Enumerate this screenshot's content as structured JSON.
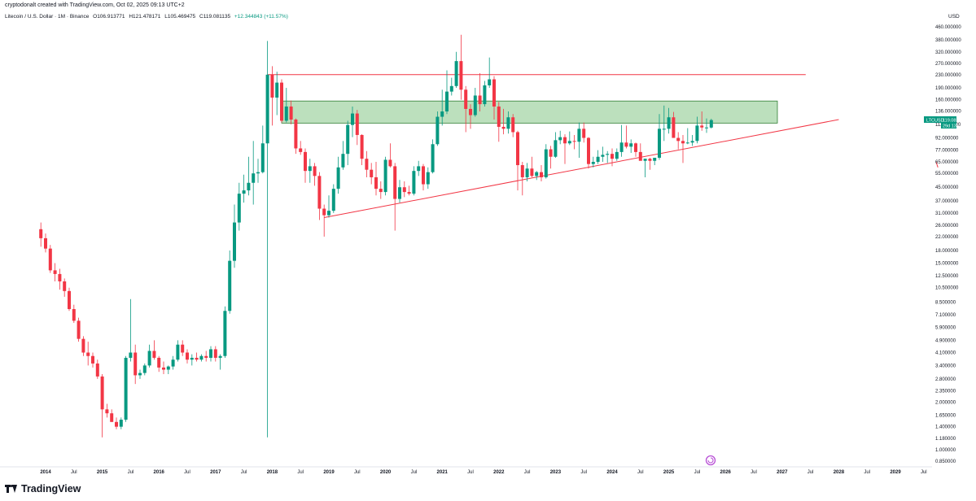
{
  "header": {
    "credit": "cryptodonalt created with TradingView.com, Oct 02, 2025 09:13 UTC+2",
    "symbol": "Litecoin / U.S. Dollar · 1M · Binance",
    "open": "O106.913771",
    "high": "H121.478171",
    "low": "L105.469475",
    "close": "C119.081135",
    "change": "+12.344843 (+11.57%)"
  },
  "price_label": {
    "ticker": "LTCUSD",
    "price": "119.081135",
    "countdown": "29d 13h"
  },
  "footer": {
    "logo": "TradingView"
  },
  "colors": {
    "up": "#089981",
    "down": "#f23645",
    "zone_fill": "#a5d6a7",
    "zone_border": "#2e7d32",
    "line_red": "#f23645"
  },
  "chart_data": {
    "type": "candlestick",
    "y_scale": "log",
    "y_unit": "USD",
    "ylim": [
      0.8,
      480
    ],
    "xlim": [
      "2013-12",
      "2029-12"
    ],
    "y_ticks": [
      "460.000000",
      "380.000000",
      "320.000000",
      "270.000000",
      "230.000000",
      "190.000000",
      "160.000000",
      "136.000000",
      "112.000000",
      "92.000000",
      "77.000000",
      "65.000000",
      "55.000000",
      "45.000000",
      "37.000000",
      "31.000000",
      "26.000000",
      "22.000000",
      "18.000000",
      "15.000000",
      "12.500000",
      "10.500000",
      "8.500000",
      "7.100000",
      "5.900000",
      "4.900000",
      "4.100000",
      "3.400000",
      "2.800000",
      "2.350000",
      "2.000000",
      "1.650000",
      "1.400000",
      "1.180000",
      "1.000000",
      "0.850000"
    ],
    "x_ticks": [
      {
        "label": "2014",
        "date": "2014-01"
      },
      {
        "label": "Jul",
        "date": "2014-07"
      },
      {
        "label": "2015",
        "date": "2015-01"
      },
      {
        "label": "Jul",
        "date": "2015-07"
      },
      {
        "label": "2016",
        "date": "2016-01"
      },
      {
        "label": "Jul",
        "date": "2016-07"
      },
      {
        "label": "2017",
        "date": "2017-01"
      },
      {
        "label": "Jul",
        "date": "2017-07"
      },
      {
        "label": "2018",
        "date": "2018-01"
      },
      {
        "label": "Jul",
        "date": "2018-07"
      },
      {
        "label": "2019",
        "date": "2019-01"
      },
      {
        "label": "Jul",
        "date": "2019-07"
      },
      {
        "label": "2020",
        "date": "2020-01"
      },
      {
        "label": "Jul",
        "date": "2020-07"
      },
      {
        "label": "2021",
        "date": "2021-01"
      },
      {
        "label": "Jul",
        "date": "2021-07"
      },
      {
        "label": "2022",
        "date": "2022-01"
      },
      {
        "label": "Jul",
        "date": "2022-07"
      },
      {
        "label": "2023",
        "date": "2023-01"
      },
      {
        "label": "Jul",
        "date": "2023-07"
      },
      {
        "label": "2024",
        "date": "2024-01"
      },
      {
        "label": "Jul",
        "date": "2024-07"
      },
      {
        "label": "2025",
        "date": "2025-01"
      },
      {
        "label": "Jul",
        "date": "2025-07"
      },
      {
        "label": "2026",
        "date": "2026-01"
      },
      {
        "label": "Jul",
        "date": "2026-07"
      },
      {
        "label": "2027",
        "date": "2027-01"
      },
      {
        "label": "Jul",
        "date": "2027-07"
      },
      {
        "label": "2028",
        "date": "2028-01"
      },
      {
        "label": "Jul",
        "date": "2028-07"
      },
      {
        "label": "2029",
        "date": "2029-01"
      },
      {
        "label": "Jul",
        "date": "2029-07"
      }
    ],
    "candles": [
      [
        "2013-12",
        24.5,
        27,
        19,
        21.5
      ],
      [
        "2014-01",
        21.5,
        23,
        17.5,
        18.5
      ],
      [
        "2014-02",
        18.5,
        19.5,
        13,
        13.5
      ],
      [
        "2014-03",
        13.5,
        15,
        11.5,
        12.8
      ],
      [
        "2014-04",
        12.8,
        13.8,
        10.2,
        11.5
      ],
      [
        "2014-05",
        11.5,
        12,
        9.2,
        10
      ],
      [
        "2014-06",
        10,
        10.5,
        7.5,
        7.7
      ],
      [
        "2014-07",
        7.7,
        8.2,
        6.3,
        6.5
      ],
      [
        "2014-08",
        6.5,
        6.8,
        4.8,
        5
      ],
      [
        "2014-09",
        5,
        5.2,
        3.9,
        4.1
      ],
      [
        "2014-10",
        4.1,
        4.8,
        3.4,
        3.9
      ],
      [
        "2014-11",
        3.9,
        4.1,
        3.3,
        3.5
      ],
      [
        "2014-12",
        3.5,
        3.7,
        2.8,
        2.9
      ],
      [
        "2015-01",
        2.9,
        3,
        1.2,
        1.8
      ],
      [
        "2015-02",
        1.8,
        1.95,
        1.6,
        1.7
      ],
      [
        "2015-03",
        1.7,
        1.8,
        1.5,
        1.5
      ],
      [
        "2015-04",
        1.5,
        1.6,
        1.35,
        1.4
      ],
      [
        "2015-05",
        1.4,
        1.6,
        1.35,
        1.55
      ],
      [
        "2015-06",
        1.55,
        3.9,
        1.5,
        3.8
      ],
      [
        "2015-07",
        3.8,
        8.9,
        3.6,
        4.1
      ],
      [
        "2015-08",
        4.1,
        4.6,
        2.6,
        2.95
      ],
      [
        "2015-09",
        2.95,
        3.2,
        2.8,
        3.05
      ],
      [
        "2015-10",
        3.05,
        3.5,
        2.95,
        3.4
      ],
      [
        "2015-11",
        3.4,
        4.6,
        3.3,
        4.2
      ],
      [
        "2015-12",
        4.2,
        4.9,
        3.7,
        3.8
      ],
      [
        "2016-01",
        3.8,
        3.9,
        3.1,
        3.3
      ],
      [
        "2016-02",
        3.3,
        3.6,
        3.0,
        3.2
      ],
      [
        "2016-03",
        3.2,
        3.4,
        3.0,
        3.35
      ],
      [
        "2016-04",
        3.35,
        3.9,
        3.2,
        3.7
      ],
      [
        "2016-05",
        3.7,
        4.9,
        3.6,
        4.6
      ],
      [
        "2016-06",
        4.6,
        4.9,
        3.9,
        4.1
      ],
      [
        "2016-07",
        4.1,
        4.3,
        3.5,
        3.7
      ],
      [
        "2016-08",
        3.7,
        4.0,
        3.4,
        3.8
      ],
      [
        "2016-09",
        3.8,
        4.1,
        3.6,
        3.7
      ],
      [
        "2016-10",
        3.7,
        4.0,
        3.6,
        3.9
      ],
      [
        "2016-11",
        3.9,
        4.2,
        3.6,
        3.8
      ],
      [
        "2016-12",
        3.8,
        4.5,
        3.6,
        4.3
      ],
      [
        "2017-01",
        4.3,
        4.5,
        3.6,
        3.8
      ],
      [
        "2017-02",
        3.8,
        4.0,
        3.2,
        3.9
      ],
      [
        "2017-03",
        3.9,
        8.0,
        3.8,
        7.5
      ],
      [
        "2017-04",
        7.5,
        18,
        7.2,
        15.5
      ],
      [
        "2017-05",
        15.5,
        35,
        14,
        27
      ],
      [
        "2017-06",
        27,
        48,
        24,
        41
      ],
      [
        "2017-07",
        41,
        54,
        36,
        43
      ],
      [
        "2017-08",
        43,
        70,
        40,
        48
      ],
      [
        "2017-09",
        48,
        88,
        35,
        55
      ],
      [
        "2017-10",
        55,
        68,
        48,
        56
      ],
      [
        "2017-11",
        56,
        110,
        55,
        85
      ],
      [
        "2017-12",
        85,
        375,
        1.2,
        230
      ],
      [
        "2018-01",
        230,
        260,
        110,
        165
      ],
      [
        "2018-02",
        165,
        240,
        128,
        205
      ],
      [
        "2018-03",
        205,
        215,
        115,
        118
      ],
      [
        "2018-04",
        118,
        190,
        115,
        145
      ],
      [
        "2018-05",
        145,
        158,
        112,
        120
      ],
      [
        "2018-06",
        120,
        122,
        73,
        79
      ],
      [
        "2018-07",
        79,
        88,
        72,
        75
      ],
      [
        "2018-08",
        75,
        79,
        48,
        57
      ],
      [
        "2018-09",
        57,
        68,
        48,
        61
      ],
      [
        "2018-10",
        61,
        64,
        46,
        53
      ],
      [
        "2018-11",
        53,
        56,
        28,
        33
      ],
      [
        "2018-12",
        33,
        35,
        22,
        30
      ],
      [
        "2019-01",
        30,
        40,
        29,
        32
      ],
      [
        "2019-02",
        32,
        47,
        31,
        44
      ],
      [
        "2019-03",
        44,
        70,
        41,
        60
      ],
      [
        "2019-04",
        60,
        88,
        58,
        73
      ],
      [
        "2019-05",
        73,
        118,
        62,
        111
      ],
      [
        "2019-06",
        111,
        145,
        93,
        131
      ],
      [
        "2019-07",
        131,
        138,
        83,
        96
      ],
      [
        "2019-08",
        96,
        97,
        62,
        68
      ],
      [
        "2019-09",
        68,
        76,
        52,
        58
      ],
      [
        "2019-10",
        58,
        64,
        47,
        52
      ],
      [
        "2019-11",
        52,
        65,
        40,
        44
      ],
      [
        "2019-12",
        44,
        49,
        38,
        42
      ],
      [
        "2020-01",
        42,
        70,
        40,
        67
      ],
      [
        "2020-02",
        67,
        85,
        60,
        61
      ],
      [
        "2020-03",
        61,
        64,
        24,
        38
      ],
      [
        "2020-04",
        38,
        50,
        36,
        45
      ],
      [
        "2020-05",
        45,
        49,
        39,
        42
      ],
      [
        "2020-06",
        42,
        46,
        40,
        41
      ],
      [
        "2020-07",
        41,
        61,
        40,
        57
      ],
      [
        "2020-08",
        57,
        66,
        53,
        61
      ],
      [
        "2020-09",
        61,
        63,
        43,
        47
      ],
      [
        "2020-10",
        47,
        60,
        44,
        56
      ],
      [
        "2020-11",
        56,
        90,
        55,
        84
      ],
      [
        "2020-12",
        84,
        135,
        82,
        125
      ],
      [
        "2021-01",
        125,
        185,
        110,
        135
      ],
      [
        "2021-02",
        135,
        245,
        130,
        180
      ],
      [
        "2021-03",
        180,
        220,
        170,
        195
      ],
      [
        "2021-04",
        195,
        320,
        190,
        280
      ],
      [
        "2021-05",
        280,
        410,
        160,
        185
      ],
      [
        "2021-06",
        185,
        195,
        100,
        140
      ],
      [
        "2021-07",
        140,
        150,
        105,
        128
      ],
      [
        "2021-08",
        128,
        190,
        125,
        170
      ],
      [
        "2021-09",
        170,
        235,
        135,
        150
      ],
      [
        "2021-10",
        150,
        210,
        145,
        197
      ],
      [
        "2021-11",
        197,
        295,
        190,
        215
      ],
      [
        "2021-12",
        215,
        225,
        120,
        145
      ],
      [
        "2022-01",
        145,
        155,
        87,
        108
      ],
      [
        "2022-02",
        108,
        140,
        97,
        105
      ],
      [
        "2022-03",
        105,
        135,
        98,
        124
      ],
      [
        "2022-04",
        124,
        130,
        93,
        100
      ],
      [
        "2022-05",
        100,
        102,
        43,
        62
      ],
      [
        "2022-06",
        62,
        65,
        40,
        52
      ],
      [
        "2022-07",
        52,
        64,
        49,
        59
      ],
      [
        "2022-08",
        59,
        70,
        52,
        53
      ],
      [
        "2022-09",
        53,
        57,
        50,
        56
      ],
      [
        "2022-10",
        56,
        62,
        49,
        52
      ],
      [
        "2022-11",
        52,
        84,
        51,
        78
      ],
      [
        "2022-12",
        78,
        82,
        59,
        70
      ],
      [
        "2023-01",
        70,
        100,
        69,
        89
      ],
      [
        "2023-02",
        89,
        102,
        84,
        93
      ],
      [
        "2023-03",
        93,
        97,
        63,
        85
      ],
      [
        "2023-04",
        85,
        101,
        83,
        88
      ],
      [
        "2023-05",
        88,
        96,
        78,
        87
      ],
      [
        "2023-06",
        87,
        115,
        69,
        105
      ],
      [
        "2023-07",
        105,
        115,
        86,
        92
      ],
      [
        "2023-08",
        92,
        93,
        59,
        63
      ],
      [
        "2023-09",
        63,
        70,
        60,
        65
      ],
      [
        "2023-10",
        65,
        77,
        63,
        70
      ],
      [
        "2023-11",
        70,
        81,
        65,
        72
      ],
      [
        "2023-12",
        72,
        76,
        64,
        73
      ],
      [
        "2024-01",
        73,
        79,
        61,
        68
      ],
      [
        "2024-02",
        68,
        79,
        66,
        75
      ],
      [
        "2024-03",
        75,
        111,
        70,
        86
      ],
      [
        "2024-04",
        86,
        110,
        79,
        81
      ],
      [
        "2024-05",
        81,
        90,
        74,
        85
      ],
      [
        "2024-06",
        85,
        86,
        70,
        75
      ],
      [
        "2024-07",
        75,
        85,
        67,
        66
      ],
      [
        "2024-08",
        66,
        68,
        52,
        68
      ],
      [
        "2024-09",
        68,
        69,
        58,
        66
      ],
      [
        "2024-10",
        66,
        68,
        62,
        69
      ],
      [
        "2024-11",
        69,
        130,
        67,
        105
      ],
      [
        "2024-12",
        105,
        147,
        88,
        105
      ],
      [
        "2025-01",
        105,
        142,
        98,
        124
      ],
      [
        "2025-02",
        124,
        134,
        94,
        92
      ],
      [
        "2025-03",
        92,
        100,
        78,
        88
      ],
      [
        "2025-04",
        88,
        96,
        64,
        85
      ],
      [
        "2025-05",
        85,
        106,
        84,
        86
      ],
      [
        "2025-06",
        86,
        96,
        82,
        88
      ],
      [
        "2025-07",
        88,
        125,
        85,
        110
      ],
      [
        "2025-08",
        110,
        135,
        102,
        107
      ],
      [
        "2025-09",
        107,
        122,
        99,
        107
      ],
      [
        "2025-10",
        106.913771,
        121.478171,
        105.469475,
        119.081135
      ]
    ],
    "annotations": {
      "resistance_line": {
        "from": [
          "2017-12",
          230
        ],
        "to": [
          "2027-06",
          230
        ]
      },
      "zone": {
        "from": "2018-03",
        "to": "2026-12",
        "low": 114,
        "high": 157
      },
      "ascending_trendline": {
        "from": [
          "2018-12",
          29
        ],
        "to": [
          "2028-01",
          120
        ]
      },
      "channel_stub": {
        "from": [
          "2029-10",
          60
        ],
        "to": [
          "2030-03",
          65
        ]
      }
    }
  }
}
